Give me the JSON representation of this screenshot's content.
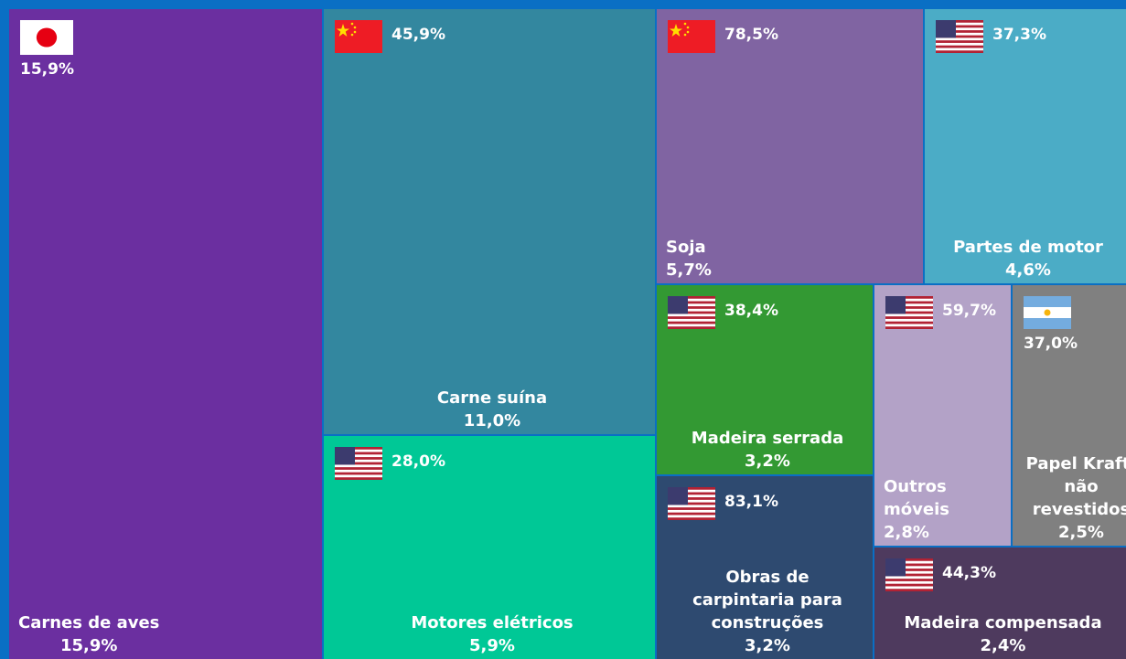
{
  "chart_data": {
    "type": "treemap",
    "items": [
      {
        "name": "Carnes de aves",
        "value": 15.9,
        "value_label": "15,9%",
        "country_share": 15.9,
        "country_share_label": "15,9%",
        "color": "#6b2fa0"
      },
      {
        "name": "Carne suína",
        "value": 11.0,
        "value_label": "11,0%",
        "country_share": 45.9,
        "country_share_label": "45,9%",
        "color": "#33879f"
      },
      {
        "name": "Motores elétricos",
        "value": 5.9,
        "value_label": "5,9%",
        "country_share": 28.0,
        "country_share_label": "28,0%",
        "color": "#00c896"
      },
      {
        "name": "Soja",
        "value": 5.7,
        "value_label": "5,7%",
        "country_share": 78.5,
        "country_share_label": "78,5%",
        "color": "#8064a2"
      },
      {
        "name": "Partes de motor",
        "value": 4.6,
        "value_label": "4,6%",
        "country_share": 37.3,
        "country_share_label": "37,3%",
        "color": "#4bacc6"
      },
      {
        "name": "Madeira serrada",
        "value": 3.2,
        "value_label": "3,2%",
        "country_share": 38.4,
        "country_share_label": "38,4%",
        "color": "#339933"
      },
      {
        "name": "Obras de carpintaria para construções",
        "value": 3.2,
        "value_label": "3,2%",
        "country_share": 83.1,
        "country_share_label": "83,1%",
        "color": "#2e4a70"
      },
      {
        "name": "Outros móveis",
        "value": 2.8,
        "value_label": "2,8%",
        "country_share": 59.7,
        "country_share_label": "59,7%",
        "color": "#b3a2c7"
      },
      {
        "name": "Papel Kraft, não revestidos",
        "value": 2.5,
        "value_label": "2,5%",
        "country_share": 37.0,
        "country_share_label": "37,0%",
        "color": "#808080"
      },
      {
        "name": "Madeira compensada",
        "value": 2.4,
        "value_label": "2,4%",
        "country_share": 44.3,
        "country_share_label": "44,3%",
        "color": "#4e3a5e"
      }
    ]
  }
}
